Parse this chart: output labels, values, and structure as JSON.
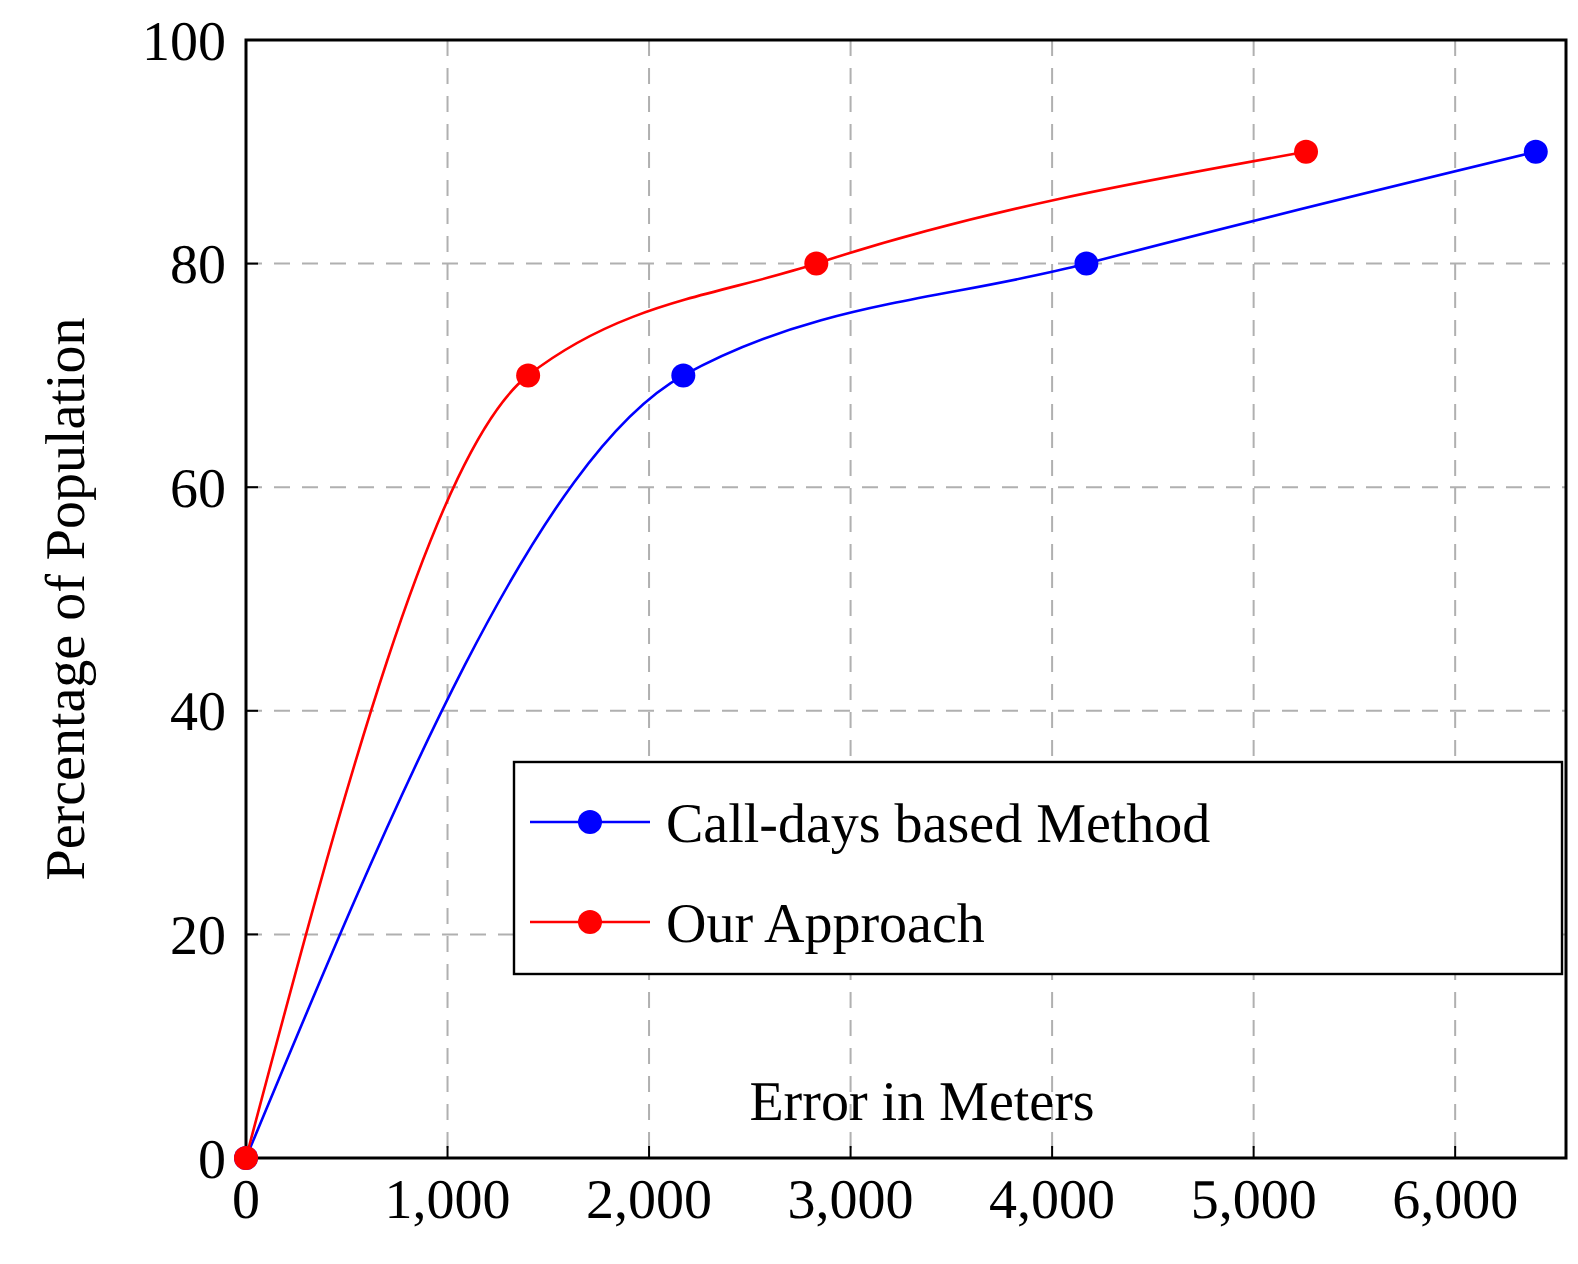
{
  "chart_data": {
    "type": "line",
    "xlabel": "Error in Meters",
    "ylabel": "Percentage of Population",
    "xlim": [
      0,
      6550
    ],
    "ylim": [
      0,
      100
    ],
    "xticks": [
      0,
      {
        "value": 1000,
        "label": "1,000"
      },
      {
        "value": 2000,
        "label": "2,000"
      },
      {
        "value": 3000,
        "label": "3,000"
      },
      {
        "value": 4000,
        "label": "4,000"
      },
      {
        "value": 5000,
        "label": "5,000"
      },
      {
        "value": 6000,
        "label": "6,000"
      }
    ],
    "yticks": [
      0,
      20,
      40,
      60,
      80,
      100
    ],
    "series": [
      {
        "name": "Call-days based Method",
        "color": "#0000ff",
        "x": [
          0,
          2170,
          4170,
          6400
        ],
        "values": [
          0,
          70,
          80,
          90
        ]
      },
      {
        "name": "Our Approach",
        "color": "#ff0000",
        "x": [
          0,
          1400,
          2830,
          5260
        ],
        "values": [
          0,
          70,
          80,
          90
        ]
      }
    ],
    "grid": true,
    "legend": "bottom right",
    "marker": "circle",
    "line_style": "solid"
  }
}
